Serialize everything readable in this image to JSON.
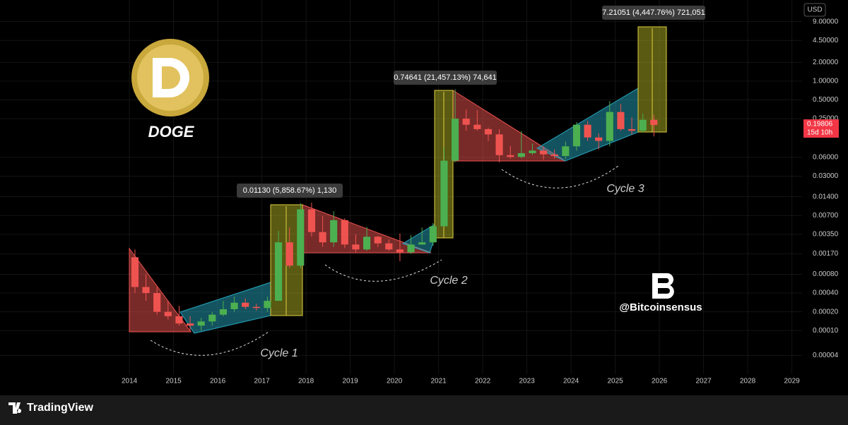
{
  "chart_data": {
    "type": "candlestick",
    "title": "DOGE",
    "currency": "USD",
    "log_scale": true,
    "grid": true,
    "up_color": "#4caf50",
    "down_color": "#ef5350",
    "x": [
      2014.125,
      2014.375,
      2014.625,
      2014.875,
      2015.125,
      2015.375,
      2015.625,
      2015.875,
      2016.125,
      2016.375,
      2016.625,
      2016.875,
      2017.125,
      2017.375,
      2017.625,
      2017.875,
      2018.125,
      2018.375,
      2018.625,
      2018.875,
      2019.125,
      2019.375,
      2019.625,
      2019.875,
      2020.125,
      2020.375,
      2020.625,
      2020.875,
      2021.125,
      2021.375,
      2021.625,
      2021.875,
      2022.125,
      2022.375,
      2022.625,
      2022.875,
      2023.125,
      2023.375,
      2023.625,
      2023.875,
      2024.125,
      2024.375,
      2024.625,
      2024.875,
      2025.125,
      2025.375,
      2025.625,
      2025.875
    ],
    "open": [
      0.0015,
      0.0005,
      0.0004,
      0.0002,
      0.00017,
      0.00013,
      0.00012,
      0.00014,
      0.00018,
      0.00022,
      0.00028,
      0.00024,
      0.00023,
      0.0003,
      0.0026,
      0.0011,
      0.0088,
      0.0038,
      0.0026,
      0.0059,
      0.0024,
      0.002,
      0.0032,
      0.0025,
      0.002,
      0.0018,
      0.0024,
      0.0026,
      0.0047,
      0.053,
      0.25,
      0.2,
      0.17,
      0.14,
      0.065,
      0.061,
      0.07,
      0.077,
      0.067,
      0.063,
      0.09,
      0.2,
      0.125,
      0.11,
      0.32,
      0.17,
      0.16,
      0.24
    ],
    "high": [
      0.002,
      0.0008,
      0.0005,
      0.0003,
      0.00025,
      0.00017,
      0.00016,
      0.0002,
      0.0003,
      0.00035,
      0.00033,
      0.00027,
      0.00035,
      0.004,
      0.0045,
      0.011,
      0.0113,
      0.0069,
      0.0082,
      0.0063,
      0.0035,
      0.0046,
      0.0033,
      0.0029,
      0.0036,
      0.0034,
      0.0045,
      0.0053,
      0.087,
      0.74,
      0.35,
      0.34,
      0.18,
      0.17,
      0.091,
      0.159,
      0.1,
      0.09,
      0.08,
      0.107,
      0.22,
      0.23,
      0.145,
      0.48,
      0.43,
      0.26,
      0.3,
      0.29
    ],
    "low": [
      0.0004,
      0.0003,
      0.00018,
      0.00015,
      0.00012,
      0.0001,
      0.0001,
      0.00012,
      0.00017,
      0.0002,
      0.00022,
      0.00021,
      0.0002,
      0.0003,
      0.001,
      0.001,
      0.0032,
      0.0022,
      0.0022,
      0.0021,
      0.0018,
      0.0019,
      0.0022,
      0.0019,
      0.0013,
      0.0017,
      0.0024,
      0.0023,
      0.0046,
      0.05,
      0.16,
      0.16,
      0.11,
      0.05,
      0.057,
      0.058,
      0.066,
      0.055,
      0.057,
      0.056,
      0.077,
      0.11,
      0.08,
      0.09,
      0.16,
      0.14,
      0.15,
      0.13
    ],
    "close": [
      0.0005,
      0.0004,
      0.0002,
      0.00017,
      0.00013,
      0.00012,
      0.00014,
      0.00018,
      0.00022,
      0.00028,
      0.00024,
      0.00023,
      0.0003,
      0.0026,
      0.0011,
      0.0088,
      0.0038,
      0.0026,
      0.0059,
      0.0024,
      0.002,
      0.0032,
      0.0025,
      0.002,
      0.0018,
      0.0024,
      0.0026,
      0.0047,
      0.053,
      0.25,
      0.2,
      0.17,
      0.14,
      0.065,
      0.061,
      0.07,
      0.077,
      0.067,
      0.063,
      0.09,
      0.2,
      0.125,
      0.11,
      0.32,
      0.17,
      0.16,
      0.24,
      0.198
    ],
    "xlim": [
      2011.07,
      2029.23
    ],
    "ylim": [
      2e-05,
      20
    ],
    "xticks": [
      2014,
      2015,
      2016,
      2017,
      2018,
      2019,
      2020,
      2021,
      2022,
      2023,
      2024,
      2025,
      2026,
      2027,
      2028,
      2029
    ],
    "yticks": [
      {
        "value": 9,
        "label": "9.00000"
      },
      {
        "value": 4.5,
        "label": "4.50000"
      },
      {
        "value": 2,
        "label": "2.00000"
      },
      {
        "value": 1,
        "label": "1.00000"
      },
      {
        "value": 0.5,
        "label": "0.50000"
      },
      {
        "value": 0.25,
        "label": "0.25000"
      },
      {
        "value": 0.06,
        "label": "0.06000"
      },
      {
        "value": 0.03,
        "label": "0.03000"
      },
      {
        "value": 0.014,
        "label": "0.01400"
      },
      {
        "value": 0.007,
        "label": "0.00700"
      },
      {
        "value": 0.0035,
        "label": "0.00350"
      },
      {
        "value": 0.0017,
        "label": "0.00170"
      },
      {
        "value": 0.0008,
        "label": "0.00080"
      },
      {
        "value": 0.0004,
        "label": "0.00040"
      },
      {
        "value": 0.0002,
        "label": "0.00020"
      },
      {
        "value": 0.0001,
        "label": "0.00010"
      },
      {
        "value": 4e-05,
        "label": "0.00004"
      }
    ],
    "last_price": 0.19806,
    "countdown": "15d 10h",
    "measurements": [
      "0.01130 (5,858.67%) 1,130",
      "0.74641 (21,457.13%) 74,641",
      "7.21051 (4,447.76%) 721,051"
    ],
    "cycle_labels": [
      "Cycle 1",
      "Cycle 2",
      "Cycle 3"
    ],
    "watermark": "@Bitcoinsensus"
  },
  "footer": {
    "brand": "TradingView"
  }
}
